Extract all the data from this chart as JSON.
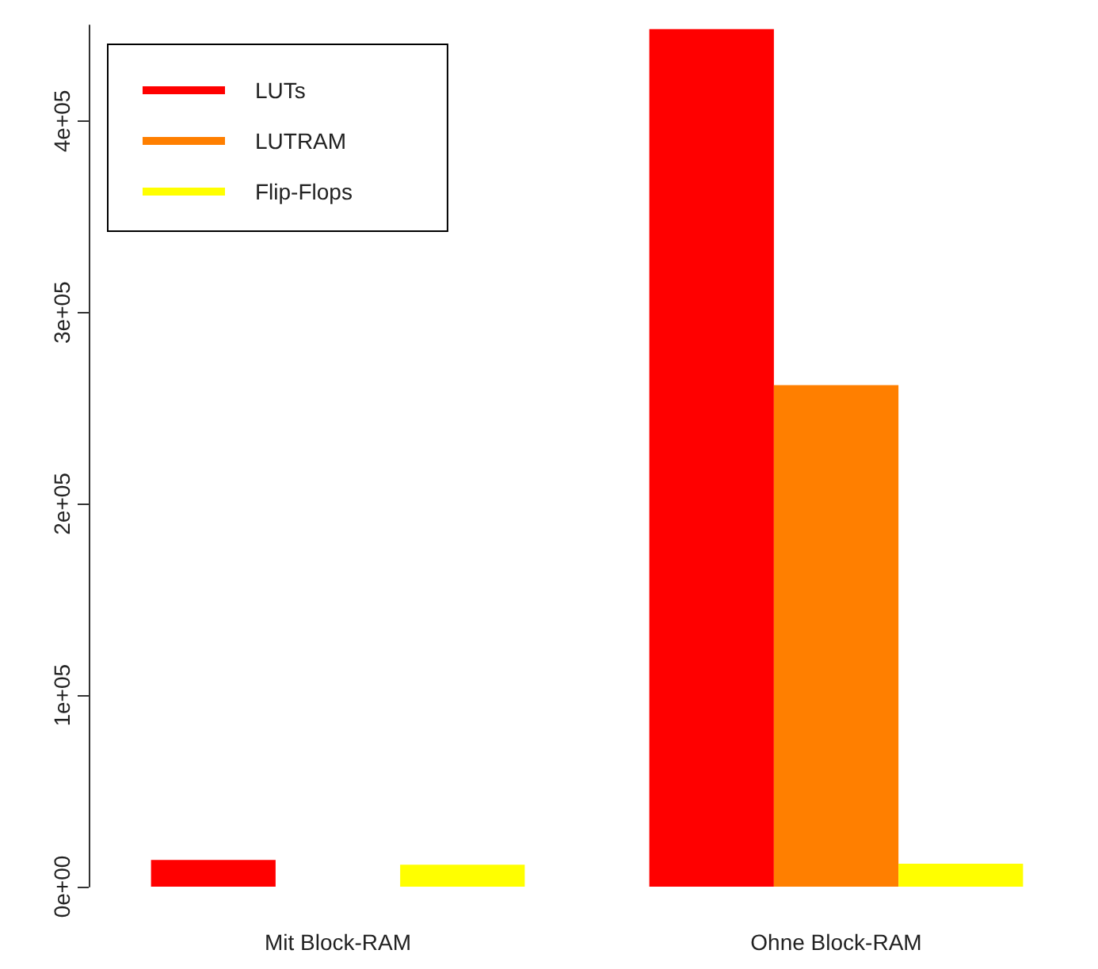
{
  "chart_data": {
    "type": "bar",
    "categories": [
      "Mit Block-RAM",
      "Ohne Block-RAM"
    ],
    "series": [
      {
        "name": "LUTs",
        "color": "#ff0000",
        "values": [
          14000,
          448000
        ]
      },
      {
        "name": "LUTRAM",
        "color": "#ff7f00",
        "values": [
          0,
          262000
        ]
      },
      {
        "name": "Flip-Flops",
        "color": "#ffff00",
        "values": [
          11500,
          12000
        ]
      }
    ],
    "ylim": [
      0,
      450000
    ],
    "yticks": [
      {
        "value": 0,
        "label": "0e+00"
      },
      {
        "value": 100000,
        "label": "1e+05"
      },
      {
        "value": 200000,
        "label": "2e+05"
      },
      {
        "value": 300000,
        "label": "3e+05"
      },
      {
        "value": 400000,
        "label": "4e+05"
      }
    ],
    "legend": "top left",
    "grid": false
  }
}
